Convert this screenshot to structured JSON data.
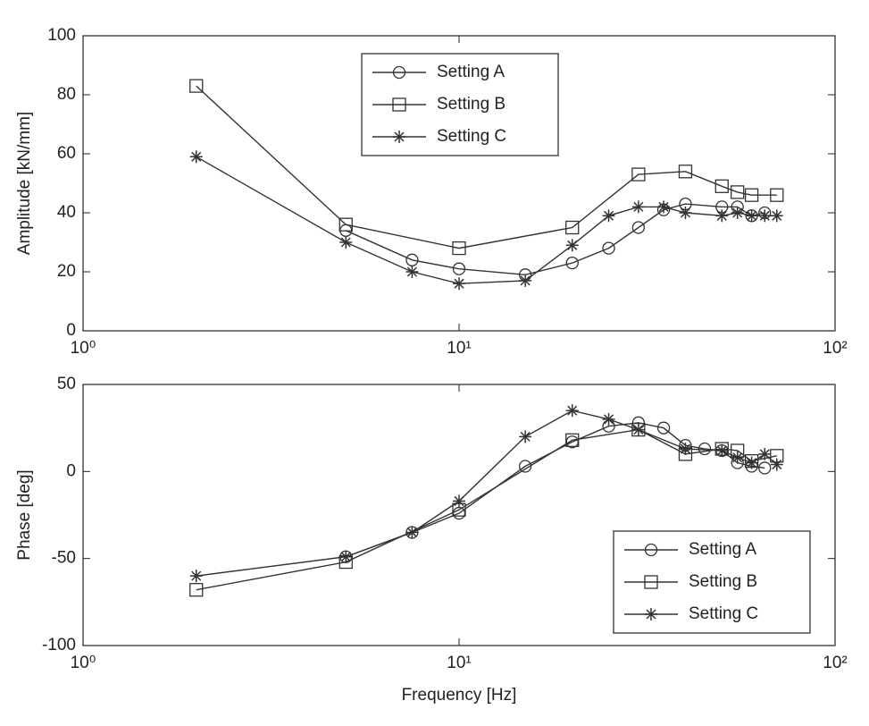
{
  "chart_data": [
    {
      "type": "line",
      "ylabel": "Amplitude [kN/mm]",
      "log_x": true,
      "grid": false,
      "legend": "upper center",
      "xlim": [
        1,
        100
      ],
      "xticks": [
        {
          "value": 1,
          "label": "10⁰"
        },
        {
          "value": 10,
          "label": "10¹"
        },
        {
          "value": 100,
          "label": "10²"
        }
      ],
      "ylim": [
        0,
        100
      ],
      "yticks": [
        0,
        20,
        40,
        60,
        80,
        100
      ],
      "series": [
        {
          "name": "Setting A",
          "marker": "circle",
          "color": "#333333",
          "x": [
            5,
            7.5,
            10,
            15,
            20,
            25,
            30,
            35,
            40,
            50,
            55,
            60,
            65
          ],
          "values": [
            34,
            24,
            21,
            19,
            23,
            28,
            35,
            41,
            43,
            42,
            42,
            39,
            40
          ]
        },
        {
          "name": "Setting B",
          "marker": "square",
          "color": "#333333",
          "x": [
            2,
            5,
            10,
            20,
            30,
            40,
            50,
            55,
            60,
            70
          ],
          "values": [
            83,
            36,
            28,
            35,
            53,
            54,
            49,
            47,
            46,
            46
          ]
        },
        {
          "name": "Setting C",
          "marker": "star",
          "color": "#333333",
          "x": [
            2,
            5,
            7.5,
            10,
            15,
            20,
            25,
            30,
            35,
            40,
            50,
            55,
            60,
            65,
            70
          ],
          "values": [
            59,
            30,
            20,
            16,
            17,
            29,
            39,
            42,
            42,
            40,
            39,
            40,
            39,
            39,
            39
          ]
        }
      ]
    },
    {
      "type": "line",
      "ylabel": "Phase [deg]",
      "xlabel": "Frequency [Hz]",
      "log_x": true,
      "grid": false,
      "legend": "lower right",
      "xlim": [
        1,
        100
      ],
      "xticks": [
        {
          "value": 1,
          "label": "10⁰"
        },
        {
          "value": 10,
          "label": "10¹"
        },
        {
          "value": 100,
          "label": "10²"
        }
      ],
      "ylim": [
        -100,
        50
      ],
      "yticks": [
        -100,
        -50,
        0,
        50
      ],
      "series": [
        {
          "name": "Setting A",
          "marker": "circle",
          "color": "#333333",
          "x": [
            5,
            7.5,
            10,
            15,
            20,
            25,
            30,
            35,
            40,
            45,
            50,
            55,
            60,
            65
          ],
          "values": [
            -49,
            -35,
            -24,
            3,
            17,
            26,
            28,
            25,
            15,
            13,
            12,
            5,
            3,
            2
          ]
        },
        {
          "name": "Setting B",
          "marker": "square",
          "color": "#333333",
          "x": [
            2,
            5,
            10,
            20,
            30,
            40,
            50,
            55,
            60,
            70
          ],
          "values": [
            -68,
            -52,
            -22,
            18,
            24,
            10,
            13,
            12,
            6,
            9
          ]
        },
        {
          "name": "Setting C",
          "marker": "star",
          "color": "#333333",
          "x": [
            2,
            5,
            7.5,
            10,
            15,
            20,
            25,
            30,
            40,
            50,
            55,
            60,
            65,
            70
          ],
          "values": [
            -60,
            -49,
            -35,
            -17,
            20,
            35,
            30,
            24,
            13,
            12,
            8,
            5,
            10,
            4
          ]
        }
      ]
    }
  ]
}
